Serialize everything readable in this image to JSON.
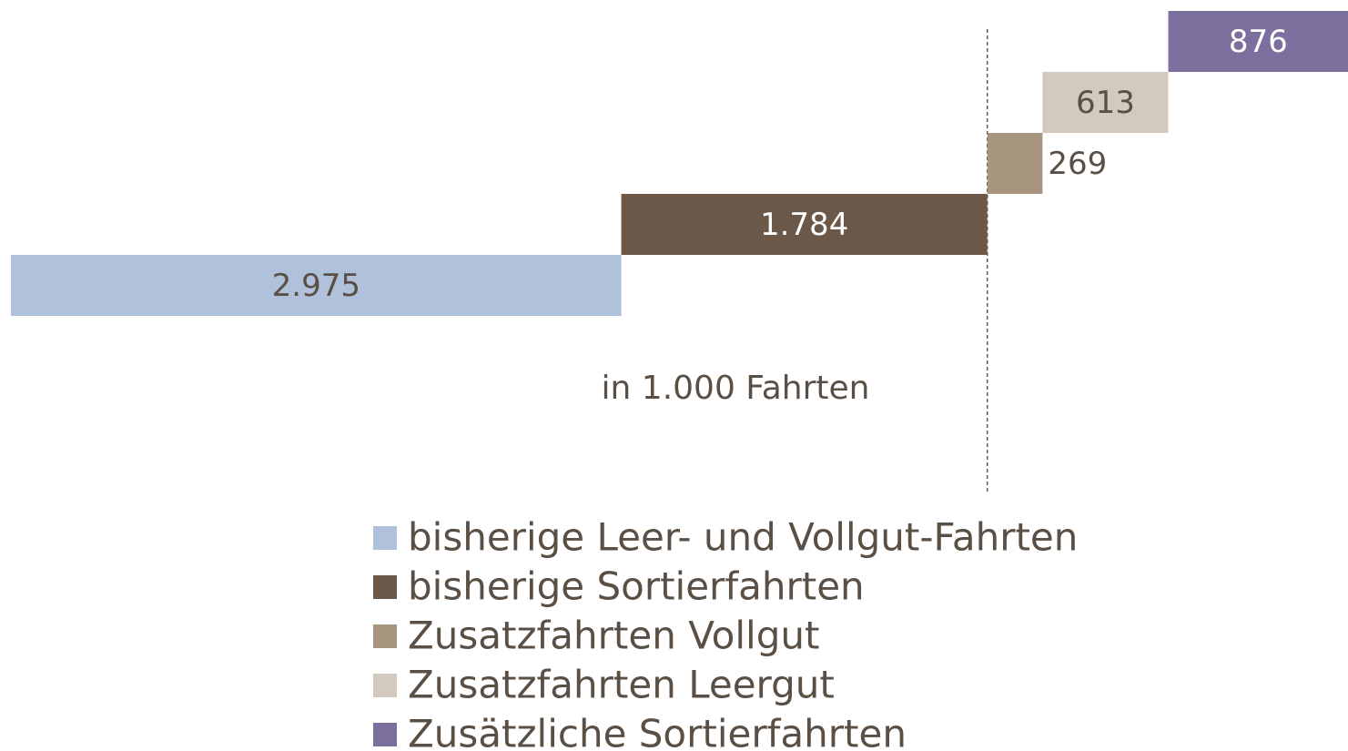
{
  "chart_data": {
    "type": "waterfall",
    "note": "in 1.000 Fahrten",
    "categories": [
      "bisherige Leer- und Vollgut-Fahrten",
      "bisherige Sortierfahrten",
      "Zusatzfahrten Vollgut",
      "Zusatzfahrten Leergut",
      "Zusätzliche Sortierfahrten"
    ],
    "values": [
      2975,
      1784,
      269,
      613,
      876
    ],
    "value_labels": [
      "2.975",
      "1.784",
      "269",
      "613",
      "876"
    ],
    "colors": [
      "#b0c1dc",
      "#6b5848",
      "#a89580",
      "#d4c9be",
      "#7b6f9e"
    ]
  }
}
